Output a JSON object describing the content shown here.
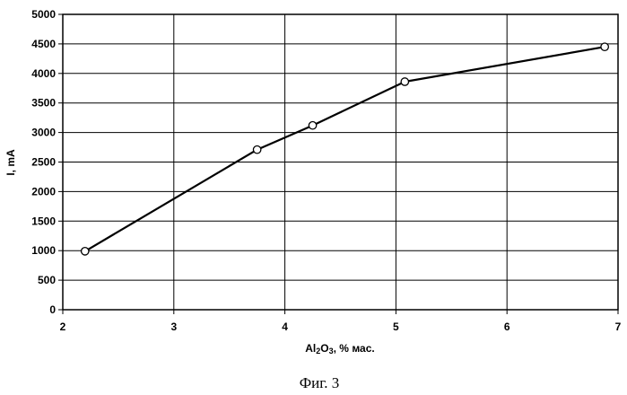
{
  "chart_data": {
    "type": "line",
    "title": "",
    "xlabel": "Al2O3, % мас.",
    "xlabel_parts": {
      "a": "Al",
      "sub": "2",
      "b": "O",
      "sub2": "3",
      "rest": ", % мас."
    },
    "ylabel": "I, mA",
    "xlim": [
      2,
      7
    ],
    "ylim": [
      0,
      5000
    ],
    "x_ticks": [
      2,
      3,
      4,
      5,
      6,
      7
    ],
    "y_ticks": [
      0,
      500,
      1000,
      1500,
      2000,
      2500,
      3000,
      3500,
      4000,
      4500,
      5000
    ],
    "grid": true,
    "series": [
      {
        "x": [
          2.2,
          3.75,
          4.25,
          5.08,
          6.88
        ],
        "y": [
          990,
          2710,
          3120,
          3860,
          4450
        ],
        "marker": "open-circle",
        "color": "#000000"
      }
    ],
    "caption": "Фиг. 3"
  }
}
